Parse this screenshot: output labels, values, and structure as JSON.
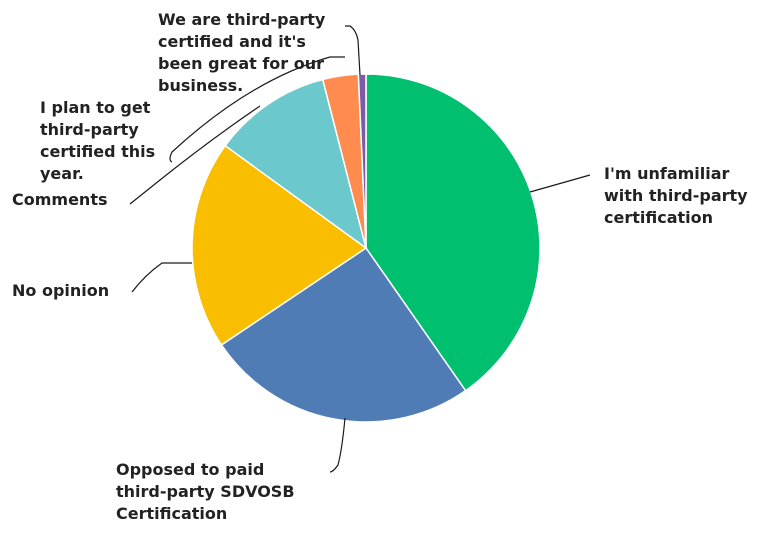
{
  "chart_data": {
    "type": "pie",
    "slices": [
      {
        "label": [
          "I'm unfamiliar",
          "with third-party",
          "certification"
        ],
        "value": 40.3,
        "color": "#00BF6F"
      },
      {
        "label": [
          "Opposed to paid",
          "third-party SDVOSB",
          "Certification"
        ],
        "value": 25.3,
        "color": "#507CB6"
      },
      {
        "label": [
          "No opinion"
        ],
        "value": 19.4,
        "color": "#F9BE00"
      },
      {
        "label": [
          "Comments"
        ],
        "value": 11.0,
        "color": "#6BC8CD"
      },
      {
        "label": [
          "I plan to get",
          "third-party",
          "certified this",
          "year."
        ],
        "value": 3.3,
        "color": "#FF8B4F"
      },
      {
        "label": [
          "We are third-party",
          "certified and it's",
          "been great for our",
          "business."
        ],
        "value": 0.7,
        "color": "#7D5BA6"
      }
    ]
  }
}
